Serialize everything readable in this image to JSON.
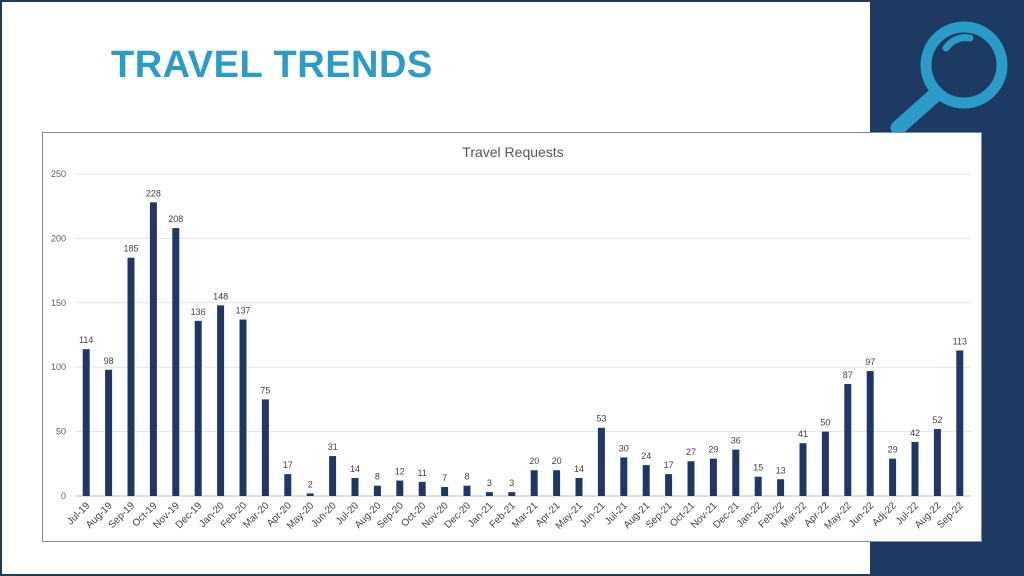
{
  "page": {
    "title": "TRAVEL TRENDS",
    "icon": "magnifier-icon",
    "colors": {
      "title": "#2b9cc8",
      "panel": "#1d3a63",
      "bar": "#1f3864",
      "icon": "#2b9cc8"
    }
  },
  "chart_data": {
    "type": "bar",
    "title": "Travel Requests",
    "xlabel": "",
    "ylabel": "",
    "ylim": [
      0,
      250
    ],
    "yticks": [
      0,
      50,
      100,
      150,
      200,
      250
    ],
    "grid": true,
    "legend": "none",
    "categories": [
      "Jul-19",
      "Aug-19",
      "Sep-19",
      "Oct-19",
      "Nov-19",
      "Dec-19",
      "Jan-20",
      "Feb-20",
      "Mar-20",
      "Apr-20",
      "May-20",
      "Jun-20",
      "Jul-20",
      "Aug-20",
      "Sep-20",
      "Oct-20",
      "Nov-20",
      "Dec-20",
      "Jan-21",
      "Feb-21",
      "Mar-21",
      "Apr-21",
      "May-21",
      "Jun-21",
      "Jul-21",
      "Aug-21",
      "Sep-21",
      "Oct-21",
      "Nov-21",
      "Dec-21",
      "Jan-22",
      "Feb-22",
      "Mar-22",
      "Apr-22",
      "May-22",
      "Jun-22",
      "Adj-22",
      "Jul-22",
      "Aug-22",
      "Sep-22"
    ],
    "values": [
      114,
      98,
      185,
      228,
      208,
      136,
      148,
      137,
      75,
      17,
      2,
      31,
      14,
      8,
      12,
      11,
      7,
      8,
      3,
      3,
      20,
      20,
      14,
      53,
      30,
      24,
      17,
      27,
      29,
      36,
      15,
      13,
      41,
      50,
      87,
      97,
      29,
      42,
      52,
      113
    ]
  }
}
